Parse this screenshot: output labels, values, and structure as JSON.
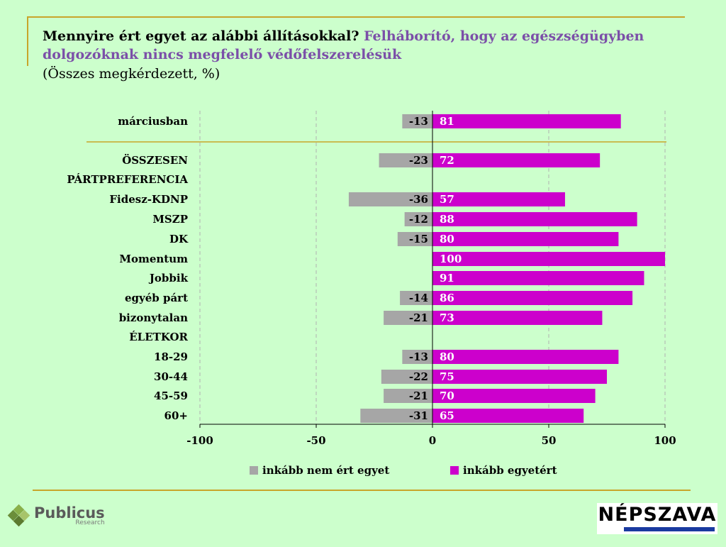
{
  "header": {
    "question": "Mennyire ért egyet az alábbi állításokkal?",
    "statement": "Felháborító, hogy az egészségügyben dolgozóknak nincs megfelelő védőfelszerelésük",
    "subtitle": "(Összes megkérdezett, %)"
  },
  "chart_data": {
    "type": "bar",
    "orientation": "horizontal-diverging",
    "title": "Mennyire ért egyet az alábbi állításokkal? Felháborító, hogy az egészségügyben dolgozóknak nincs megfelelő védőfelszerelésük",
    "subtitle": "(Összes megkérdezett, %)",
    "xlim": [
      -100,
      100
    ],
    "ticks": [
      -100,
      -50,
      0,
      50,
      100
    ],
    "tick_labels": [
      "-100",
      "-50",
      "0",
      "50",
      "100"
    ],
    "grid": true,
    "categories": [
      "márciusban",
      "ÖSSZESEN",
      "PÁRTPREFERENCIA",
      "Fidesz-KDNP",
      "MSZP",
      "DK",
      "Momentum",
      "Jobbik",
      "egyéb párt",
      "bizonytalan",
      "ÉLETKOR",
      "18-29",
      "30-44",
      "45-59",
      "60+"
    ],
    "series": [
      {
        "name": "inkább nem ért egyet",
        "color": "#a6a6a6",
        "values": [
          -13,
          -23,
          null,
          -36,
          -12,
          -15,
          null,
          null,
          -14,
          -21,
          null,
          -13,
          -22,
          -21,
          -31
        ]
      },
      {
        "name": "inkább egyetért",
        "color": "#cc00cc",
        "values": [
          81,
          72,
          null,
          57,
          88,
          80,
          100,
          91,
          86,
          73,
          null,
          80,
          75,
          70,
          65
        ]
      }
    ],
    "legend": "bottom"
  },
  "legend": {
    "disagree_label": "inkább nem ért egyet",
    "agree_label": "inkább egyetért",
    "disagree_color": "#a6a6a6",
    "agree_color": "#cc00cc"
  },
  "brand": {
    "publicus_name": "Publicus",
    "publicus_sub": "Research",
    "nepszava_name": "NÉPSZAVA"
  }
}
